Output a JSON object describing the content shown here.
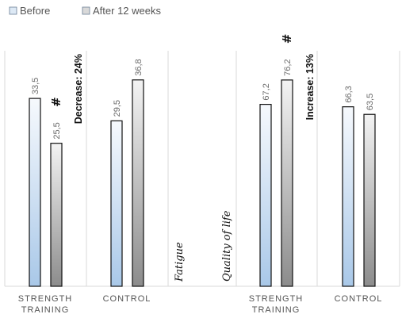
{
  "chart_data": [
    {
      "type": "bar",
      "panel_label": "Fatigue",
      "categories": [
        "STRENGTH\nTRAINING",
        "CONTROL"
      ],
      "series": [
        {
          "name": "Before",
          "values": [
            33.5,
            29.5
          ],
          "labels": [
            "33,5",
            "29,5"
          ]
        },
        {
          "name": "After 12 weeks",
          "values": [
            25.5,
            36.8
          ],
          "labels": [
            "25,5",
            "36,8"
          ]
        }
      ],
      "significance_marker": {
        "text": "#",
        "category_index": 0,
        "series_index": 1
      },
      "annotation": {
        "text": "Decrease: 24%",
        "category_index": 0
      },
      "ylim": [
        0,
        42
      ]
    },
    {
      "type": "bar",
      "panel_label": "Quality of life",
      "categories": [
        "STRENGTH\nTRAINING",
        "CONTROL"
      ],
      "series": [
        {
          "name": "Before",
          "values": [
            67.2,
            66.3
          ],
          "labels": [
            "67,2",
            "66,3"
          ]
        },
        {
          "name": "After 12 weeks",
          "values": [
            76.2,
            63.5
          ],
          "labels": [
            "76,2",
            "63,5"
          ]
        }
      ],
      "significance_marker": {
        "text": "#",
        "category_index": 0,
        "series_index": 1
      },
      "annotation": {
        "text": "Increase: 13%",
        "category_index": 0
      },
      "ylim": [
        0,
        87
      ]
    }
  ],
  "legend": {
    "position": "top-left",
    "items": [
      {
        "label": "Before",
        "color": "#dde9f5"
      },
      {
        "label": "After 12 weeks",
        "color": "#d9d9d9"
      }
    ]
  },
  "colors": {
    "before_top": "#f6f9fd",
    "before_bottom": "#a9c8e8",
    "after_top": "#f3f3f3",
    "after_bottom": "#8c8c8c",
    "bar_stroke": "#111111",
    "grid": "#d9d9d9"
  }
}
